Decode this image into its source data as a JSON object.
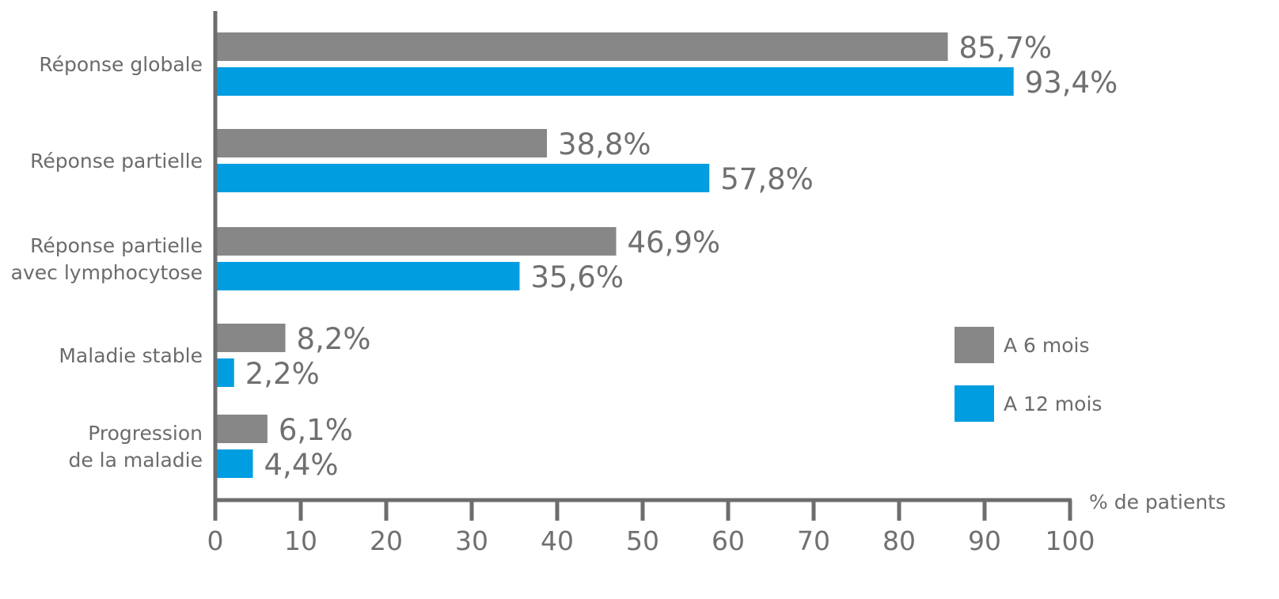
{
  "chart_data": {
    "type": "bar",
    "orientation": "horizontal",
    "categories": [
      [
        "Réponse globale"
      ],
      [
        "Réponse partielle"
      ],
      [
        "Réponse partielle",
        "avec lymphocytose"
      ],
      [
        "Maladie stable"
      ],
      [
        "Progression",
        "de la maladie"
      ]
    ],
    "series": [
      {
        "name": "A 6 mois",
        "color": "#878787",
        "values": [
          85.7,
          38.8,
          46.9,
          8.2,
          6.1
        ],
        "labels": [
          "85,7%",
          "38,8%",
          "46,9%",
          "8,2%",
          "6,1%"
        ]
      },
      {
        "name": "A 12 mois",
        "color": "#009ee0",
        "values": [
          93.4,
          57.8,
          35.6,
          2.2,
          4.4
        ],
        "labels": [
          "93,4%",
          "57,8%",
          "35,6%",
          "2,2%",
          "4,4%"
        ]
      }
    ],
    "xlim": [
      0,
      100
    ],
    "xticks": [
      0,
      10,
      20,
      30,
      40,
      50,
      60,
      70,
      80,
      90,
      100
    ],
    "xlabel": "% de patients",
    "legend_position": "right",
    "grid": false
  }
}
